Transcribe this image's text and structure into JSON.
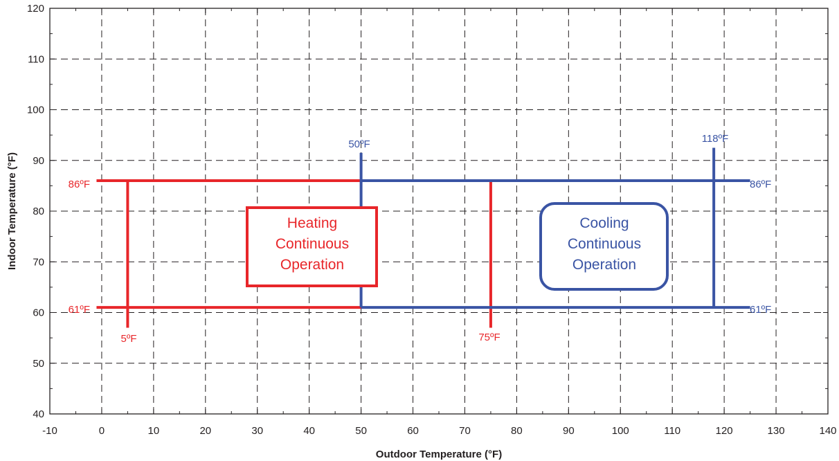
{
  "chart_data": {
    "type": "line",
    "title": "",
    "xlabel": "Outdoor Temperature (°F)",
    "ylabel": "Indoor Temperature (°F)",
    "xlim": [
      -10,
      140
    ],
    "ylim": [
      40,
      120
    ],
    "xticks": [
      "-10",
      "0",
      "10",
      "20",
      "30",
      "40",
      "50",
      "60",
      "70",
      "80",
      "90",
      "100",
      "110",
      "120",
      "130",
      "140"
    ],
    "yticks": [
      "40",
      "50",
      "60",
      "70",
      "80",
      "90",
      "100",
      "110",
      "120"
    ],
    "grid": true,
    "colors": {
      "heating": "#e8262a",
      "cooling": "#3a54a4",
      "axis": "#231f20"
    },
    "series": [
      {
        "name": "Heating Continuous Operation",
        "color": "#e8262a",
        "lines": [
          {
            "x": [
              -1,
              75
            ],
            "y": [
              86,
              86
            ]
          },
          {
            "x": [
              -1,
              50
            ],
            "y": [
              61,
              61
            ]
          },
          {
            "x": [
              5,
              5
            ],
            "y": [
              57,
              86
            ]
          },
          {
            "x": [
              75,
              75
            ],
            "y": [
              57,
              86
            ]
          }
        ],
        "labels": [
          "86ºF",
          "61ºF",
          "5ºF",
          "75ºF"
        ],
        "box_text": [
          "Heating",
          "Continuous",
          "Operation"
        ]
      },
      {
        "name": "Cooling Continuous Operation",
        "color": "#3a54a4",
        "lines": [
          {
            "x": [
              50,
              125
            ],
            "y": [
              86,
              86
            ]
          },
          {
            "x": [
              50,
              125
            ],
            "y": [
              61,
              61
            ]
          },
          {
            "x": [
              50,
              50
            ],
            "y": [
              61,
              91.5
            ]
          },
          {
            "x": [
              118,
              118
            ],
            "y": [
              61,
              92.5
            ]
          }
        ],
        "labels": [
          "50ºF",
          "118ºF",
          "86ºF",
          "61ºF"
        ],
        "box_text": [
          "Cooling",
          "Continuous",
          "Operation"
        ]
      }
    ]
  }
}
